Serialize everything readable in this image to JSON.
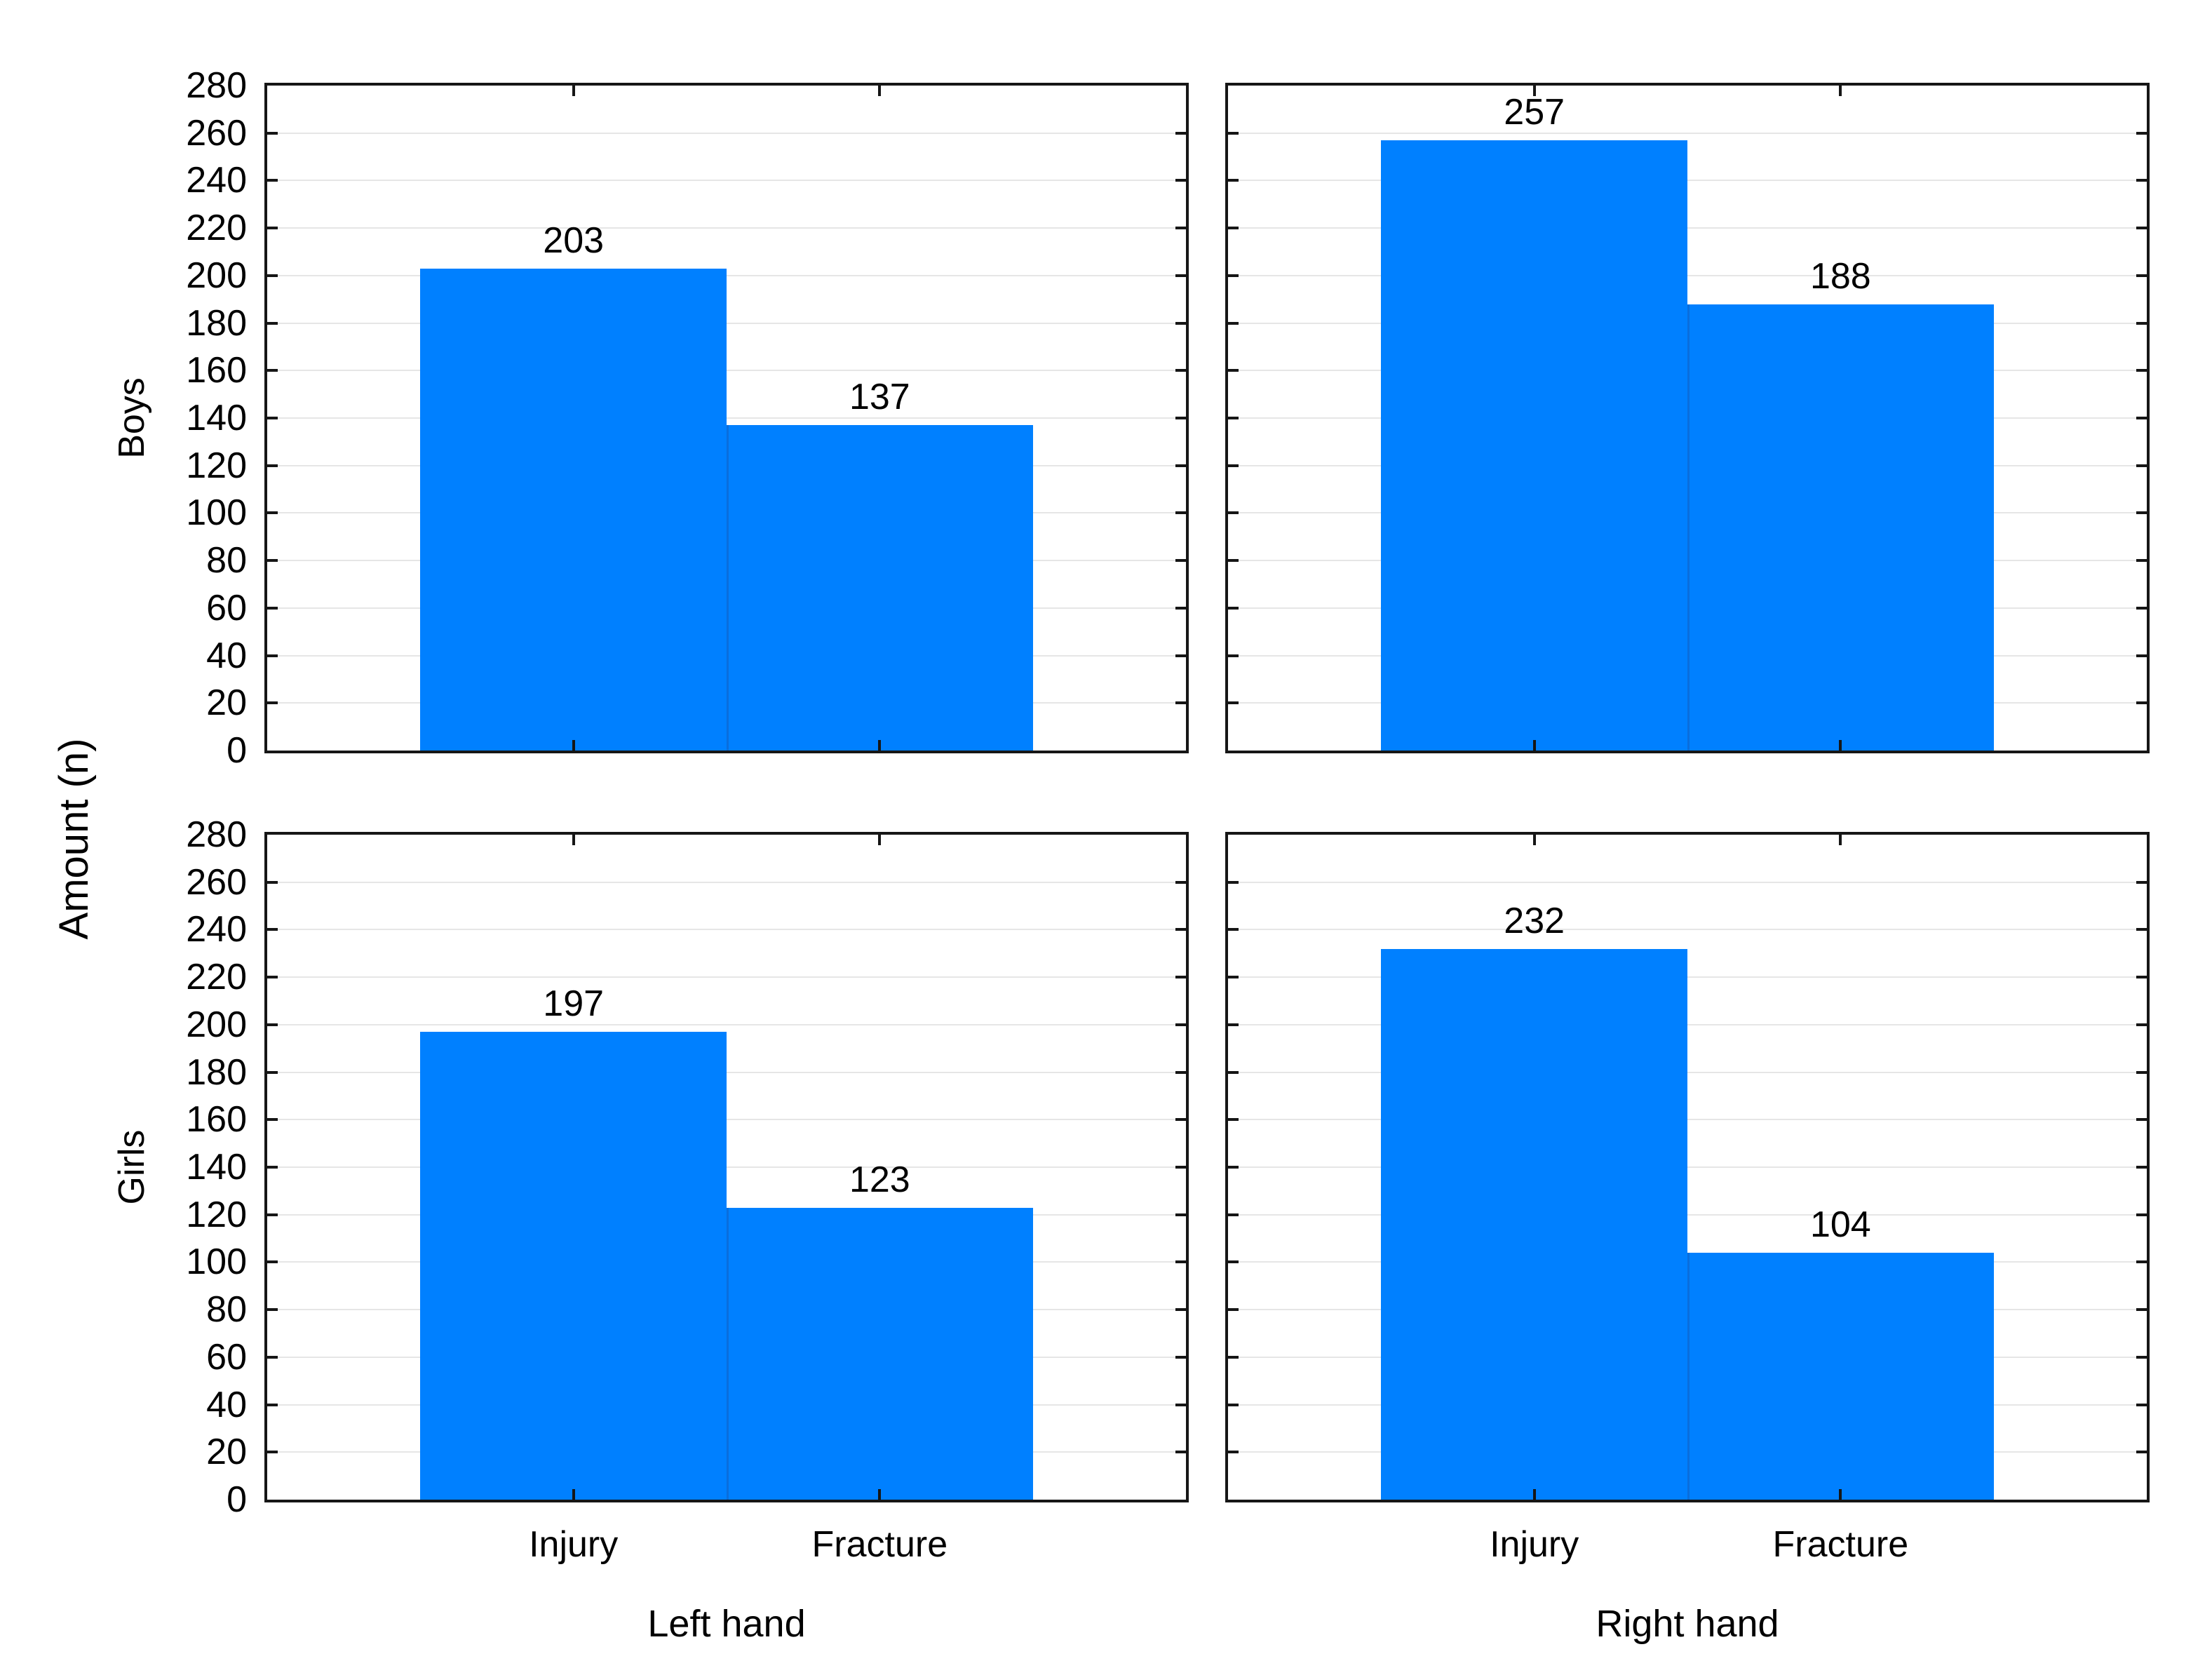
{
  "figure": {
    "background": "#FFFFFF",
    "colors": {
      "bar_fill": "#0080FF",
      "bar_divider": "#0A6EDC",
      "gridline": "#E6E6E6",
      "axis": "#161616",
      "text": "#000000"
    }
  },
  "chart_data": {
    "type": "bar",
    "layout": "2x2 small-multiple panels, shared y-axis, horizontal gridlines, inside tick marks, value labels above bars",
    "title": "",
    "ylabel": "Amount (n)",
    "ylim": [
      0,
      280
    ],
    "ytick_step": 20,
    "yticks": [
      0,
      20,
      40,
      60,
      80,
      100,
      120,
      140,
      160,
      180,
      200,
      220,
      240,
      260,
      280
    ],
    "categories": [
      "Injury",
      "Fracture"
    ],
    "rows": [
      "Boys",
      "Girls"
    ],
    "columns": [
      "Left hand",
      "Right hand"
    ],
    "series": [
      {
        "row": "Boys",
        "column": "Left hand",
        "values": [
          203,
          137
        ]
      },
      {
        "row": "Boys",
        "column": "Right hand",
        "values": [
          257,
          188
        ]
      },
      {
        "row": "Girls",
        "column": "Left hand",
        "values": [
          197,
          123
        ]
      },
      {
        "row": "Girls",
        "column": "Right hand",
        "values": [
          232,
          104
        ]
      }
    ]
  }
}
